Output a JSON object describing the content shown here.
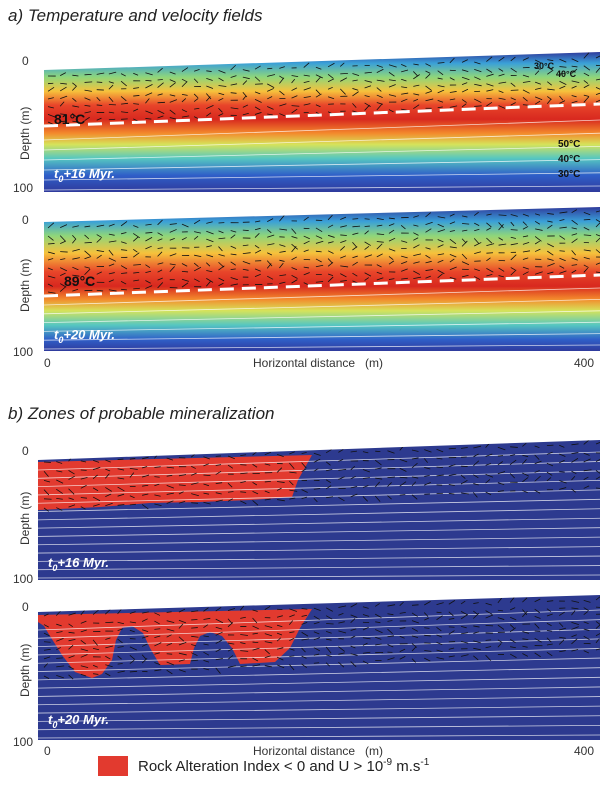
{
  "colors": {
    "thermal_ramp": [
      "#2f3a9c",
      "#2f5fc8",
      "#3aa0d8",
      "#56c7c1",
      "#8fd67a",
      "#d6e35a",
      "#f6c23c",
      "#f38a2c",
      "#e8452a",
      "#d8281f"
    ],
    "background_blue": "#2d3a8f",
    "mineral_red": "#e23a2f",
    "streamline": "#ffffff",
    "isotherm_dash": "#ffffff",
    "vector": "#111111"
  },
  "section_a": {
    "title": "a) Temperature and velocity fields",
    "ylabel": "Depth   (m)",
    "xlabel": "Horizontal distance   (m)",
    "x_ticks": [
      "0",
      "400"
    ],
    "y_ticks": [
      "0",
      "100"
    ],
    "panels": [
      {
        "time_label_prefix": "t",
        "time_label_sub": "0",
        "time_label_suffix": "+16 Myr.",
        "max_temp_label": "81°C",
        "isotherm_labels_top": [
          "30°C",
          "40°C"
        ],
        "isotherm_labels_bottom": [
          "50°C",
          "40°C",
          "30°C"
        ]
      },
      {
        "time_label_prefix": "t",
        "time_label_sub": "0",
        "time_label_suffix": "+20 Myr.",
        "max_temp_label": "89°C"
      }
    ]
  },
  "section_b": {
    "title": "b) Zones of probable mineralization",
    "ylabel": "Depth   (m)",
    "xlabel": "Horizontal distance   (m)",
    "x_ticks": [
      "0",
      "400"
    ],
    "y_ticks": [
      "0",
      "100"
    ],
    "panels": [
      {
        "time_label_prefix": "t",
        "time_label_sub": "0",
        "time_label_suffix": "+16 Myr."
      },
      {
        "time_label_prefix": "t",
        "time_label_sub": "0",
        "time_label_suffix": "+20 Myr."
      }
    ]
  },
  "legend": {
    "text_main": "Rock Alteration Index < 0  and  U > 10",
    "text_exp": "-9",
    "text_unit": " m.s",
    "text_unit_exp": "-1"
  }
}
